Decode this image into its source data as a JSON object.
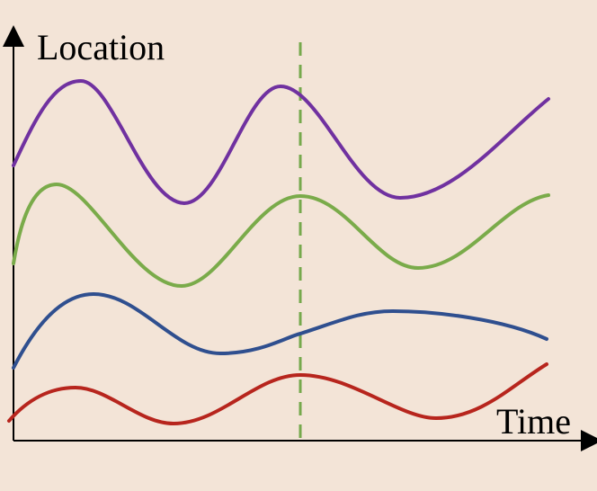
{
  "labels": {
    "y_axis": "Location",
    "x_axis": "Time"
  },
  "colors": {
    "background": "#f3e4d7",
    "axis": "#000000",
    "marker": "#76a94c"
  },
  "curves": [
    {
      "id": "purple",
      "color": "#7031a0"
    },
    {
      "id": "green",
      "color": "#7aab4a"
    },
    {
      "id": "blue",
      "color": "#2f4f8f"
    },
    {
      "id": "red",
      "color": "#b7251d"
    }
  ],
  "marker_style": "dashed-vertical-line"
}
